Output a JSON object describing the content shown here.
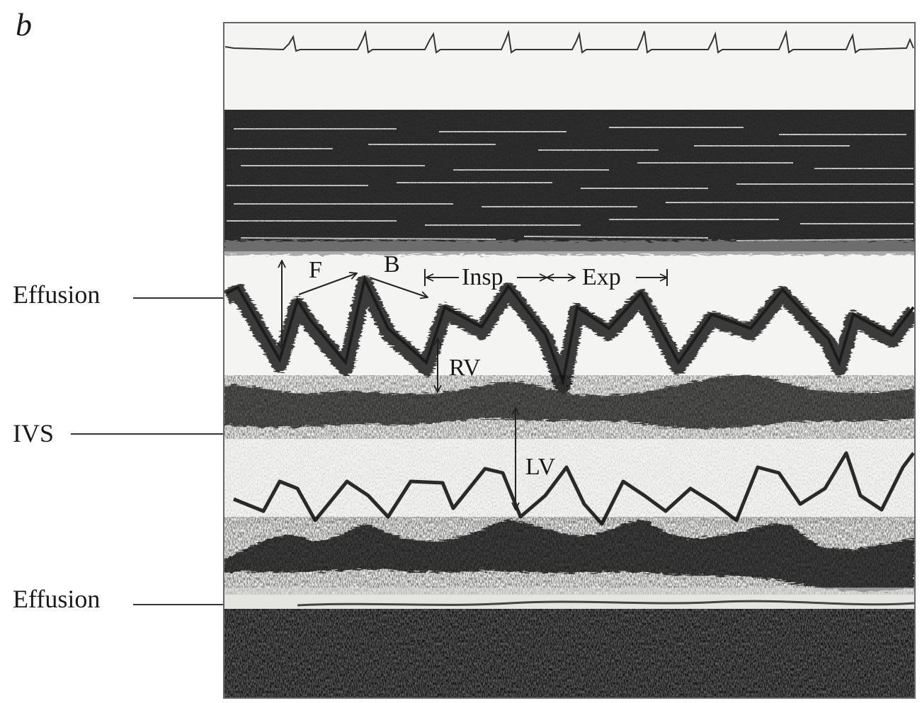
{
  "panel_letter": "b",
  "side_labels": {
    "effusion_top": "Effusion",
    "ivs": "IVS",
    "effusion_bottom": "Effusion"
  },
  "annotations": {
    "f": "F",
    "b": "B",
    "insp": "Insp",
    "exp": "Exp",
    "rv": "RV",
    "lv": "LV"
  }
}
